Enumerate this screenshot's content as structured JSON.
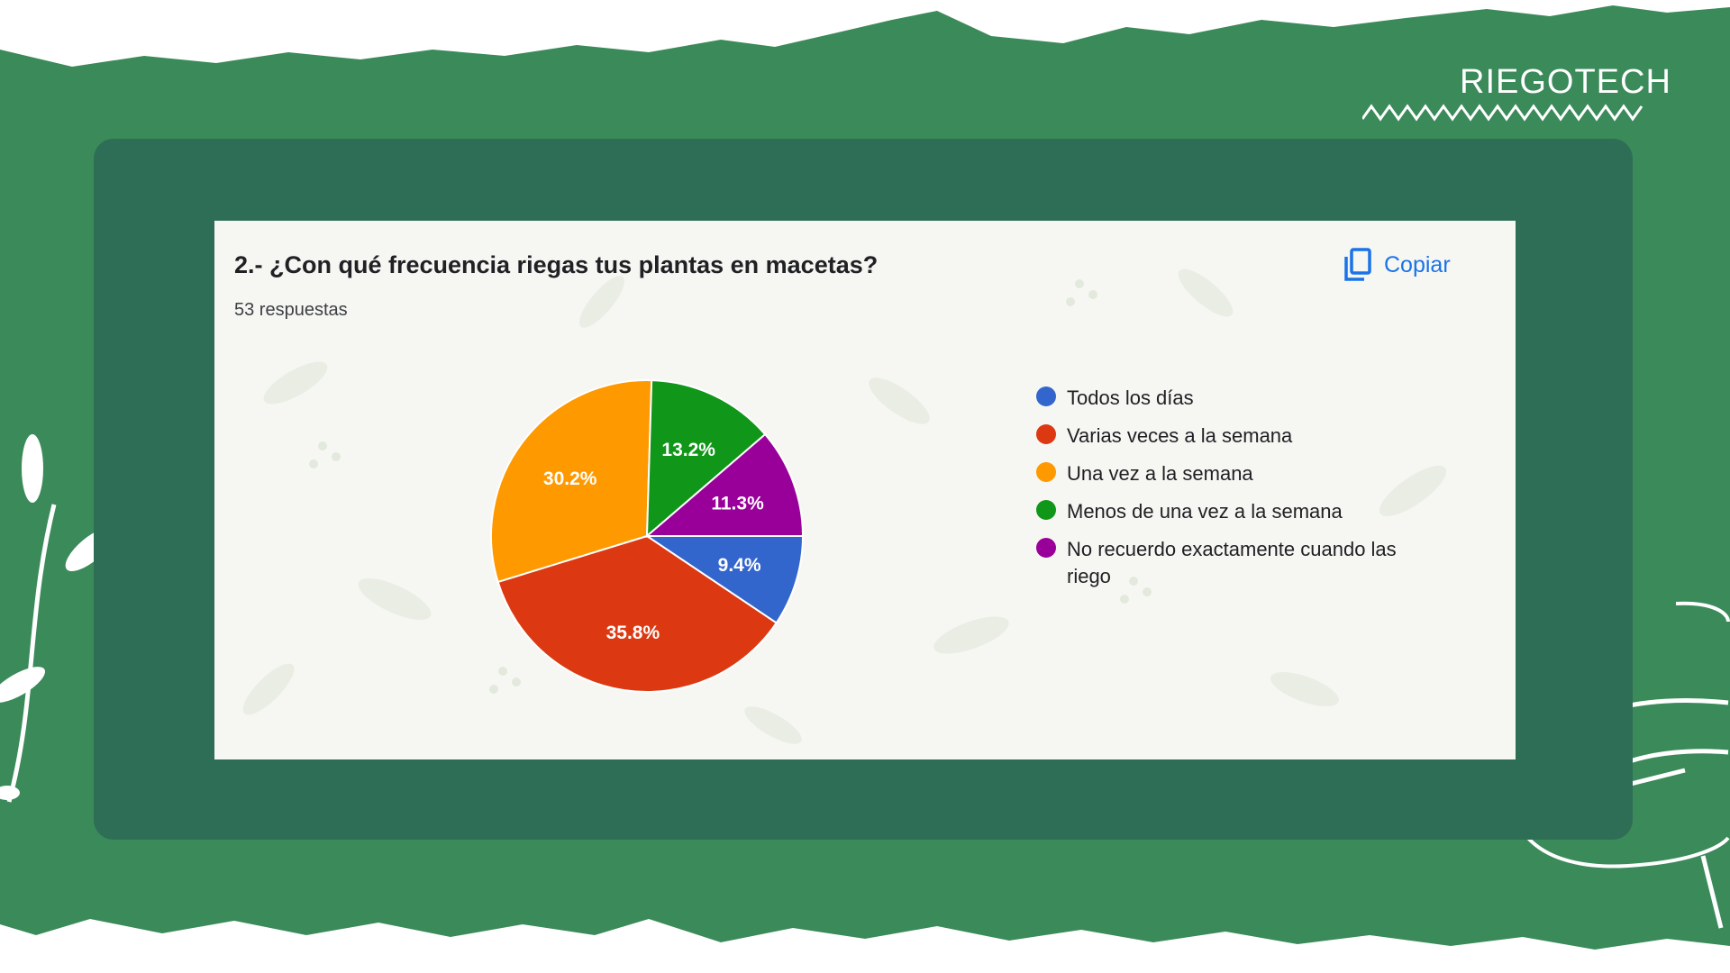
{
  "brand": {
    "name": "RIEGOTECH"
  },
  "card": {
    "title": "2.- ¿Con qué frecuencia riegas tus plantas en macetas?",
    "subtitle": "53 respuestas",
    "copy_label": "Copiar",
    "copy_icon": "copy-icon"
  },
  "colors": {
    "background": "#3b8a5a",
    "frame": "#2e6e56",
    "accent_link": "#1a73e8"
  },
  "chart_data": {
    "type": "pie",
    "title": "2.- ¿Con qué frecuencia riegas tus plantas en macetas?",
    "total_responses": 53,
    "legend_position": "right",
    "slices": [
      {
        "label": "Todos los días",
        "value": 9.4,
        "color": "#3366cc"
      },
      {
        "label": "Varias veces a la semana",
        "value": 35.8,
        "color": "#dc3912"
      },
      {
        "label": "Una vez a la semana",
        "value": 30.2,
        "color": "#ff9900"
      },
      {
        "label": "Menos de una vez a la semana",
        "value": 13.2,
        "color": "#109618"
      },
      {
        "label": "No recuerdo exactamente cuando las riego",
        "value": 11.3,
        "color": "#990099"
      }
    ]
  }
}
